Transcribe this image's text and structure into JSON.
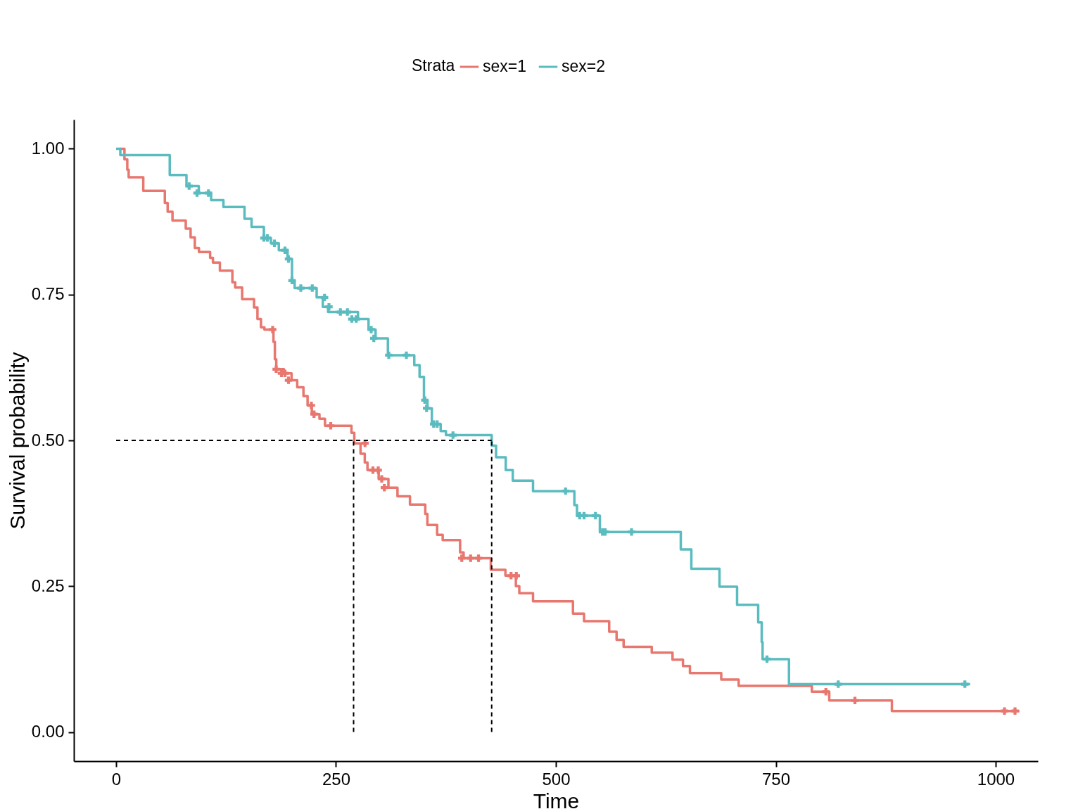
{
  "chart_data": {
    "type": "step",
    "xlabel": "Time",
    "ylabel": "Survival probability",
    "legend_title": "Strata",
    "legend": "top",
    "grid": false,
    "line_style": "solid",
    "xlim": [
      -48,
      1048
    ],
    "ylim": [
      -0.05,
      1.05
    ],
    "xticks": [
      0,
      250,
      500,
      750,
      {
        "value": 1000,
        "label": "1000"
      }
    ],
    "yticks": [
      {
        "value": 0,
        "label": "0.00"
      },
      {
        "value": 0.25,
        "label": "0.25"
      },
      {
        "value": 0.5,
        "label": "0.50"
      },
      {
        "value": 0.75,
        "label": "0.75"
      },
      {
        "value": 1,
        "label": "1.00"
      }
    ],
    "ref_lines": [
      {
        "axis": "y",
        "value": 0.5,
        "label": null,
        "color": "#000000",
        "line_style": "dashed"
      },
      {
        "axis": "x",
        "value": 270,
        "label": null,
        "color": "#000000",
        "line_style": "dashed"
      },
      {
        "axis": "x",
        "value": 427,
        "label": null,
        "color": "#000000",
        "line_style": "dashed"
      }
    ],
    "series": [
      {
        "name": "sex=1",
        "marker": "none",
        "color": "#e7776f",
        "x": [
          4,
          9.5,
          12.7,
          14.3,
          30.9,
          55.4,
          58.6,
          64.1,
          79.2,
          84.7,
          89.5,
          94.2,
          106.9,
          110.1,
          118,
          132.2,
          135.4,
          143.3,
          156.8,
          160.7,
          164.7,
          168.6,
          178.9,
          180.5,
          182.1,
          190.8,
          199.5,
          205.9,
          213,
          217.7,
          222.5,
          231.2,
          237.5,
          267.6,
          270.8,
          277.9,
          282.7,
          285.8,
          298.5,
          309.6,
          319.9,
          334.1,
          351.5,
          353.9,
          365,
          371.3,
          391.1,
          395.1,
          426,
          442.6,
          454.5,
          458.4,
          474,
          519.4,
          532,
          560.6,
          569,
          577,
          609,
          632.6,
          644.5,
          652.4,
          688,
          707.8,
          791,
          810.8,
          882,
          1027
        ],
        "values": [
          1.0,
          0.982,
          0.964,
          0.951,
          0.928,
          0.907,
          0.892,
          0.877,
          0.863,
          0.848,
          0.83,
          0.823,
          0.813,
          0.805,
          0.791,
          0.771,
          0.762,
          0.742,
          0.728,
          0.708,
          0.694,
          0.69,
          0.669,
          0.639,
          0.622,
          0.615,
          0.603,
          0.591,
          0.576,
          0.56,
          0.545,
          0.537,
          0.525,
          0.513,
          0.495,
          0.477,
          0.462,
          0.449,
          0.434,
          0.419,
          0.404,
          0.39,
          0.374,
          0.355,
          0.338,
          0.329,
          0.308,
          0.298,
          0.278,
          0.268,
          0.25,
          0.238,
          0.224,
          0.203,
          0.19,
          0.172,
          0.158,
          0.146,
          0.136,
          0.124,
          0.113,
          0.101,
          0.09,
          0.079,
          0.069,
          0.054,
          0.036,
          0.036
        ]
      },
      {
        "name": "sex=2",
        "marker": "none",
        "color": "#5bbcc0",
        "x": [
          0,
          4.8,
          61,
          80,
          94,
          108,
          122,
          146,
          154,
          168,
          176,
          185,
          195,
          200,
          203,
          228,
          235,
          241,
          275,
          287,
          295,
          309,
          339,
          345,
          350,
          354,
          359,
          369,
          375,
          427,
          432,
          443,
          451,
          474,
          521,
          524,
          550,
          642,
          654,
          686,
          706,
          730,
          734,
          735,
          765,
          971
        ],
        "values": [
          1.0,
          0.989,
          0.955,
          0.936,
          0.924,
          0.912,
          0.9,
          0.88,
          0.866,
          0.847,
          0.838,
          0.826,
          0.811,
          0.774,
          0.761,
          0.745,
          0.729,
          0.72,
          0.708,
          0.69,
          0.675,
          0.646,
          0.629,
          0.609,
          0.569,
          0.555,
          0.528,
          0.516,
          0.509,
          0.491,
          0.471,
          0.449,
          0.431,
          0.413,
          0.389,
          0.371,
          0.343,
          0.313,
          0.28,
          0.249,
          0.218,
          0.188,
          0.154,
          0.125,
          0.082,
          0.082
        ]
      },
      {
        "type": "scatter",
        "marker": "cross",
        "color": "#e7776f",
        "x": [
          178,
          182,
          188,
          192,
          196,
          222,
          225,
          244,
          283,
          292,
          298,
          302,
          305,
          393,
          403,
          412,
          449,
          455,
          807,
          840,
          1010,
          1022
        ],
        "values": [
          0.69,
          0.622,
          0.615,
          0.615,
          0.603,
          0.56,
          0.545,
          0.525,
          0.495,
          0.449,
          0.449,
          0.434,
          0.419,
          0.298,
          0.298,
          0.298,
          0.268,
          0.268,
          0.069,
          0.054,
          0.036,
          0.036
        ]
      },
      {
        "type": "scatter",
        "marker": "cross",
        "color": "#5bbcc0",
        "x": [
          83,
          92,
          105,
          168,
          172,
          180,
          192,
          196,
          200,
          210,
          223,
          237,
          242,
          255,
          263,
          268,
          273,
          290,
          293,
          310,
          330,
          351,
          353,
          361,
          365,
          383,
          511,
          527,
          532,
          545,
          553,
          556,
          586,
          740,
          821,
          965
        ],
        "values": [
          0.936,
          0.924,
          0.924,
          0.847,
          0.847,
          0.838,
          0.826,
          0.811,
          0.774,
          0.761,
          0.761,
          0.745,
          0.729,
          0.72,
          0.72,
          0.708,
          0.708,
          0.69,
          0.675,
          0.646,
          0.646,
          0.569,
          0.555,
          0.528,
          0.528,
          0.509,
          0.413,
          0.371,
          0.371,
          0.371,
          0.343,
          0.343,
          0.343,
          0.125,
          0.082,
          0.082
        ]
      }
    ]
  }
}
